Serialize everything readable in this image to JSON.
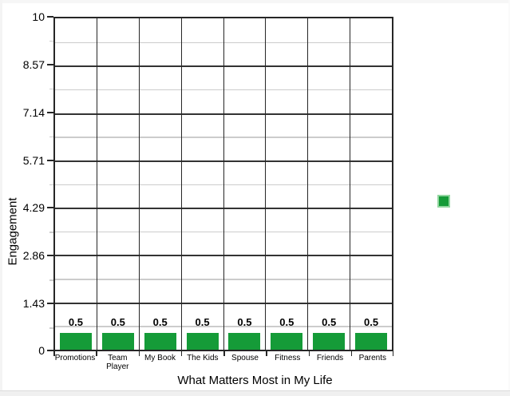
{
  "chart_data": {
    "type": "bar",
    "title": "",
    "xlabel": "What Matters Most in My Life",
    "ylabel": "Engagement",
    "categories": [
      "Promotions",
      "Team Player",
      "My Book",
      "The Kids",
      "Spouse",
      "Fitness",
      "Friends",
      "Parents"
    ],
    "values": [
      0.5,
      0.5,
      0.5,
      0.5,
      0.5,
      0.5,
      0.5,
      0.5
    ],
    "value_labels": [
      "0.5",
      "0.5",
      "0.5",
      "0.5",
      "0.5",
      "0.5",
      "0.5",
      "0.5"
    ],
    "ytick_labels": [
      "10",
      "8.57",
      "7.14",
      "5.71",
      "4.29",
      "2.86",
      "1.43",
      "0"
    ],
    "ylim": [
      0,
      10
    ],
    "bar_color": "#159b38",
    "legend_swatch_color": "#159b38",
    "legend_position": "right",
    "legend_label": "",
    "grid": "horizontal major (dark) and minor (light gray) gridlines; dark vertical category separators"
  }
}
